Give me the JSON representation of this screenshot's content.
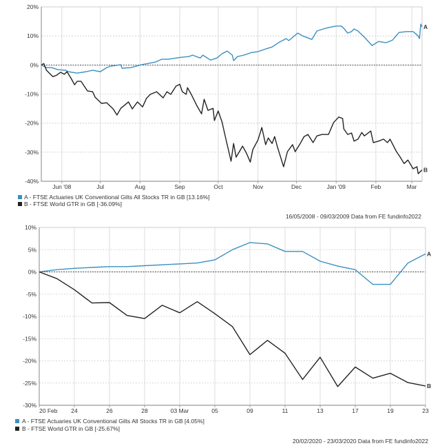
{
  "colors": {
    "series_a": "#3a8fc0",
    "series_b": "#222222"
  },
  "chart_data": [
    {
      "type": "line",
      "title": "",
      "ylabel": "",
      "xlabel": "",
      "x_unit": "days since 16/05/2008",
      "xlim": [
        0,
        297
      ],
      "ylim": [
        -40,
        20
      ],
      "yticks": [
        20,
        10,
        0,
        -10,
        -20,
        -30,
        -40
      ],
      "ytick_labels": [
        "20%",
        "10%",
        "0%",
        "-10%",
        "-20%",
        "-30%",
        "-40%"
      ],
      "xticks": [
        16,
        46,
        77,
        108,
        138,
        169,
        199,
        230,
        261,
        289
      ],
      "xtick_labels": [
        "Jun '08",
        "Jul",
        "Aug",
        "Sep",
        "Oct",
        "Nov",
        "Dec",
        "Jan '09",
        "Feb",
        "Mar"
      ],
      "grid": true,
      "legend_position": "bottom-left",
      "series": [
        {
          "name": "A - FTSE Actuaries UK Conventional Gilts All Stocks TR in GB [13.16%]",
          "end_label": "A",
          "x": [
            0,
            4,
            8,
            13,
            19,
            21,
            28,
            35,
            40,
            46,
            51,
            54,
            62,
            63,
            70,
            78,
            83,
            89,
            94,
            99,
            105,
            110,
            115,
            118,
            124,
            126,
            132,
            137,
            141,
            145,
            149,
            150,
            153,
            158,
            164,
            169,
            175,
            180,
            185,
            191,
            193,
            200,
            204,
            211,
            215,
            220,
            224,
            230,
            234,
            236,
            239,
            242,
            244,
            247,
            252,
            258,
            263,
            269,
            274,
            279,
            285,
            290,
            294,
            295,
            296,
            297
          ],
          "values": [
            0,
            -0.9,
            -0.9,
            -1.6,
            -1.8,
            -2.3,
            -2.8,
            -2.3,
            -1.8,
            -2.3,
            -0.9,
            -0.4,
            0.1,
            -1.1,
            -0.9,
            0.1,
            0.5,
            1.0,
            2.0,
            2.0,
            2.4,
            2.7,
            2.9,
            3.4,
            2.4,
            3.4,
            1.7,
            2.4,
            3.9,
            4.8,
            3.4,
            1.5,
            2.9,
            3.4,
            4.3,
            4.6,
            5.5,
            6.2,
            7.7,
            9.1,
            8.4,
            11.0,
            10.0,
            8.8,
            11.7,
            12.4,
            12.9,
            13.4,
            13.4,
            12.6,
            11.0,
            11.5,
            12.4,
            11.7,
            9.6,
            6.7,
            8.1,
            7.7,
            8.6,
            11.2,
            11.5,
            11.5,
            10.0,
            9.1,
            14.1,
            13.16
          ]
        },
        {
          "name": "B - FTSE World GTR in GB [-36.09%]",
          "end_label": "B",
          "x": [
            0,
            2,
            4,
            9,
            12,
            15,
            18,
            20,
            23,
            26,
            28,
            31,
            36,
            40,
            42,
            47,
            51,
            56,
            59,
            62,
            68,
            71,
            75,
            79,
            82,
            85,
            90,
            95,
            98,
            101,
            105,
            108,
            110,
            113,
            114,
            117,
            121,
            125,
            127,
            130,
            134,
            135,
            138,
            141,
            144,
            148,
            150,
            152,
            157,
            160,
            163,
            165,
            169,
            172,
            175,
            177,
            180,
            182,
            184,
            189,
            192,
            196,
            198,
            202,
            205,
            208,
            212,
            215,
            219,
            224,
            228,
            232,
            235,
            236,
            239,
            242,
            244,
            247,
            250,
            252,
            257,
            259,
            263,
            267,
            270,
            272,
            277,
            280,
            283,
            286,
            290,
            293,
            294,
            297
          ],
          "values": [
            0,
            0.5,
            -1.8,
            -4.0,
            -3.5,
            -2.5,
            -3.2,
            -2.3,
            -4.4,
            -6.8,
            -5.6,
            -5.6,
            -8.9,
            -9.2,
            -11.1,
            -13.2,
            -13.0,
            -15.1,
            -17.2,
            -14.9,
            -12.7,
            -15.1,
            -12.7,
            -14.4,
            -11.5,
            -10.1,
            -9.2,
            -11.3,
            -9.2,
            -10.1,
            -7.3,
            -6.6,
            -9.2,
            -10.1,
            -7.8,
            -10.1,
            -13.7,
            -16.8,
            -11.8,
            -15.6,
            -14.9,
            -19.1,
            -15.8,
            -19.6,
            -25.5,
            -33.1,
            -27.0,
            -31.7,
            -27.9,
            -30.3,
            -33.4,
            -29.1,
            -25.8,
            -21.5,
            -27.4,
            -25.1,
            -27.0,
            -24.6,
            -27.9,
            -35.0,
            -29.8,
            -27.4,
            -29.8,
            -27.0,
            -24.6,
            -23.9,
            -26.7,
            -24.4,
            -23.9,
            -23.9,
            -19.8,
            -17.9,
            -18.4,
            -22.0,
            -23.9,
            -23.4,
            -26.2,
            -25.5,
            -23.2,
            -24.4,
            -22.7,
            -26.7,
            -26.2,
            -25.5,
            -26.7,
            -25.5,
            -29.8,
            -31.7,
            -33.9,
            -32.7,
            -35.7,
            -35.0,
            -37.4,
            -36.09
          ]
        }
      ],
      "footer": "16/05/2008 - 09/03/2009 Data from FE fundinfo2022"
    },
    {
      "type": "line",
      "title": "",
      "ylabel": "",
      "xlabel": "",
      "x_unit": "trading day index from 20/02/2020",
      "xlim": [
        0,
        22
      ],
      "ylim": [
        -30,
        10
      ],
      "yticks": [
        10,
        5,
        0,
        -5,
        -10,
        -15,
        -20,
        -25,
        -30
      ],
      "ytick_labels": [
        "10%",
        "5%",
        "0%",
        "-5%",
        "-10%",
        "-15%",
        "-20%",
        "-25%",
        "-30%"
      ],
      "xticks": [
        0,
        2,
        4,
        6,
        8,
        10,
        12,
        14,
        16,
        18,
        20,
        22
      ],
      "xtick_labels": [
        "20 Feb",
        "24",
        "26",
        "28",
        "03 Mar",
        "05",
        "09",
        "11",
        "13",
        "17",
        "19",
        "23"
      ],
      "grid": true,
      "legend_position": "bottom-left",
      "series": [
        {
          "name": "A - FTSE Actuaries UK Conventional Gilts All Stocks TR in GB [4.05%]",
          "end_label": "A",
          "x": [
            0,
            1,
            2,
            3,
            4,
            5,
            6,
            7,
            8,
            9,
            10,
            11,
            12,
            13,
            14,
            15,
            16,
            17,
            18,
            19,
            20,
            21,
            22
          ],
          "values": [
            0,
            0.5,
            0.8,
            1.0,
            1.2,
            1.2,
            1.4,
            1.6,
            1.8,
            2.0,
            2.7,
            5.0,
            6.6,
            6.3,
            4.6,
            4.6,
            2.4,
            1.3,
            0.5,
            -2.8,
            -2.8,
            2.0,
            4.05
          ]
        },
        {
          "name": "B - FTSE World GTR in GB [-25.67%]",
          "end_label": "B",
          "x": [
            0,
            1,
            2,
            3,
            4,
            5,
            6,
            7,
            8,
            9,
            10,
            11,
            12,
            13,
            14,
            15,
            16,
            17,
            18,
            19,
            20,
            21,
            22
          ],
          "values": [
            0,
            -1.5,
            -4.0,
            -7.0,
            -6.9,
            -9.8,
            -10.5,
            -7.5,
            -9.2,
            -6.7,
            -9.4,
            -12.3,
            -18.6,
            -15.4,
            -18.3,
            -24.2,
            -19.2,
            -25.8,
            -21.4,
            -23.9,
            -22.8,
            -24.9,
            -25.67
          ]
        }
      ],
      "footer": "20/02/2020 - 23/03/2020 Data from FE fundinfo2022"
    }
  ]
}
